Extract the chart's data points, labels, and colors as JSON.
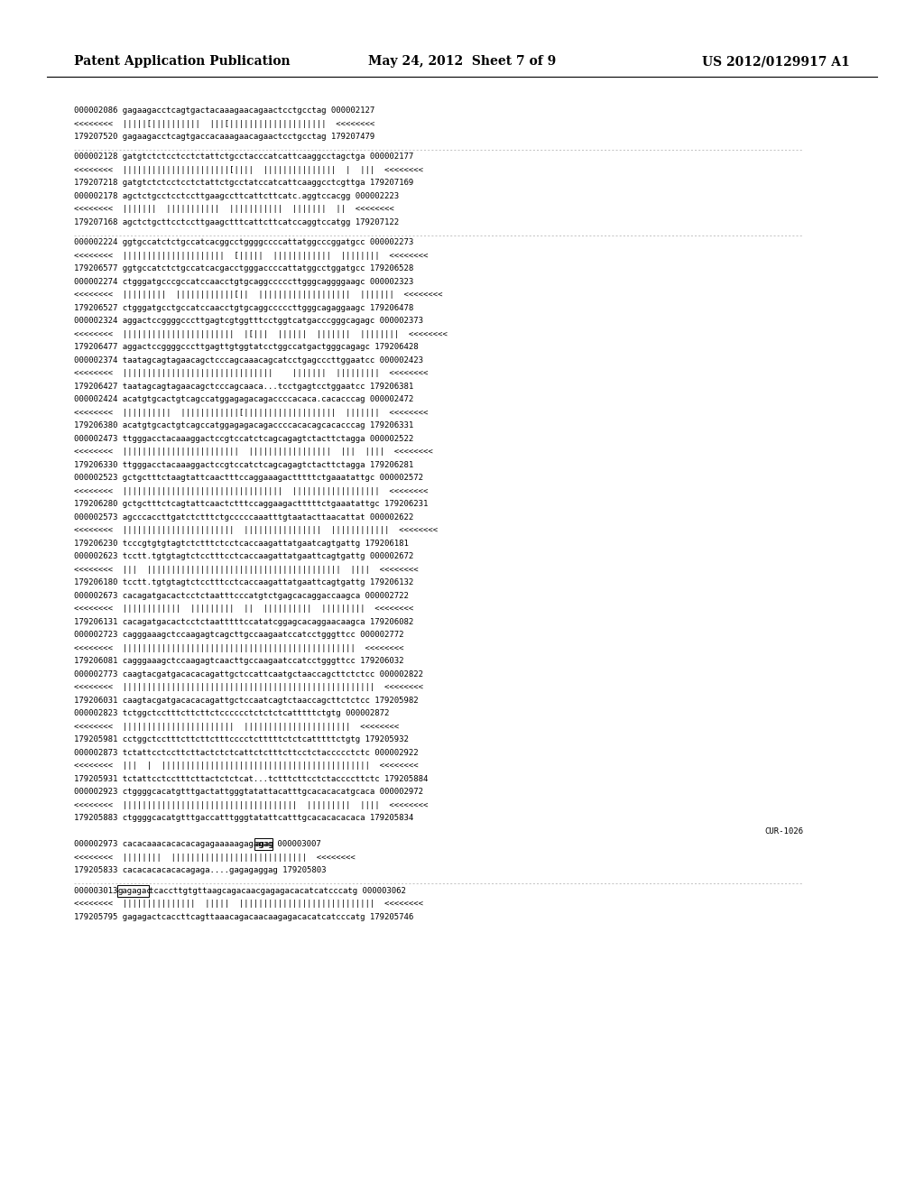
{
  "header_left": "Patent Application Publication",
  "header_center": "May 24, 2012  Sheet 7 of 9",
  "header_right": "US 2012/0129917 A1",
  "background_color": "#ffffff",
  "text_color": "#000000",
  "header_font_size": 10,
  "body_font_size": 6.5,
  "lines": [
    {
      "text": "000002086 gagaagacctcagtgactacaaagaacagaactcctgcctag 000002127",
      "type": "seq"
    },
    {
      "text": "<<<<<<<<  |||||[||||||||||  |||[||||||||||||||||||||  <<<<<<<<",
      "type": "align"
    },
    {
      "text": "179207520 gagaagacctcagtgaccacaaagaacagaactcctgcctag 179207479",
      "type": "seq"
    },
    {
      "text": "",
      "type": "separator"
    },
    {
      "text": "000002128 gatgtctctcctcctctattctgcctacccatcattcaaggcctagctga 000002177",
      "type": "seq"
    },
    {
      "text": "<<<<<<<<  ||||||||||||||||||||||[||||  |||||||||||||||  |  |||  <<<<<<<<",
      "type": "align"
    },
    {
      "text": "179207218 gatgtctctcctcctctattctgcctatccatcattcaaggcctcgttga 179207169",
      "type": "seq"
    },
    {
      "text": "000002178 agctctgcctcctccttgaagccttcattcttcatc.aggtccacgg 000002223",
      "type": "seq"
    },
    {
      "text": "<<<<<<<<  |||||||  |||||||||||  |||||||||||  |||||||  ||  <<<<<<<<",
      "type": "align"
    },
    {
      "text": "179207168 agctctgcttcctccttgaagctttcattcttcatccaggtccatgg 179207122",
      "type": "seq"
    },
    {
      "text": "",
      "type": "separator"
    },
    {
      "text": "000002224 ggtgccatctctgccatcacggcctggggccccattatggcccggatgcc 000002273",
      "type": "seq"
    },
    {
      "text": "<<<<<<<<  |||||||||||||||||||||  [|||||  ||||||||||||  ||||||||  <<<<<<<<",
      "type": "align"
    },
    {
      "text": "179206577 ggtgccatctctgccatcacgacctgggaccccattatggcctggatgcc 179206528",
      "type": "seq"
    },
    {
      "text": "000002274 ctgggatgcccgccatccaacctgtgcaggcccccttgggcaggggaagc 000002323",
      "type": "seq"
    },
    {
      "text": "<<<<<<<<  |||||||||  ||||||||||||[||  |||||||||||||||||||  |||||||  <<<<<<<<",
      "type": "align"
    },
    {
      "text": "179206527 ctgggatgcctgccatccaacctgtgcaggcccccttgggcagaggaagc 179206478",
      "type": "seq"
    },
    {
      "text": "000002324 aggactccggggcccttgagtcgtggtttcctggtcatgacccgggcagagc 000002373",
      "type": "seq"
    },
    {
      "text": "<<<<<<<<  |||||||||||||||||||||||  |[|||  ||||||  |||||||  ||||||||  <<<<<<<<",
      "type": "align"
    },
    {
      "text": "179206477 aggactccggggcccttgagttgtggtatcctggccatgactgggcagagc 179206428",
      "type": "seq"
    },
    {
      "text": "000002374 taatagcagtagaacagctcccagcaaacagcatcctgagcccttggaatcc 000002423",
      "type": "seq"
    },
    {
      "text": "<<<<<<<<  |||||||||||||||||||||||||||||||    |||||||  |||||||||  <<<<<<<<",
      "type": "align"
    },
    {
      "text": "179206427 taatagcagtagaacagctcccagcaaca...tcctgagtcctggaatcc 179206381",
      "type": "seq"
    },
    {
      "text": "000002424 acatgtgcactgtcagccatggagagacagaccccacaca.cacacccag 000002472",
      "type": "seq"
    },
    {
      "text": "<<<<<<<<  ||||||||||  ||||||||||||[|||||||||||||||||||  |||||||  <<<<<<<<",
      "type": "align"
    },
    {
      "text": "179206380 acatgtgcactgtcagccatggagagacagaccccacacagcacacccag 179206331",
      "type": "seq"
    },
    {
      "text": "000002473 ttgggacctacaaaggactccgtccatctcagcagagtctacttctagga 000002522",
      "type": "seq"
    },
    {
      "text": "<<<<<<<<  ||||||||||||||||||||||||  |||||||||||||||||  |||  ||||  <<<<<<<<",
      "type": "align"
    },
    {
      "text": "179206330 ttgggacctacaaaggactccgtccatctcagcagagtctacttctagga 179206281",
      "type": "seq"
    },
    {
      "text": "000002523 gctgctttctaagtattcaactttccaggaaagactttttctgaaatattgc 000002572",
      "type": "seq"
    },
    {
      "text": "<<<<<<<<  |||||||||||||||||||||||||||||||||  ||||||||||||||||||  <<<<<<<<",
      "type": "align"
    },
    {
      "text": "179206280 gctgctttctcagtattcaactctttccaggaagactttttctgaaatattgc 179206231",
      "type": "seq"
    },
    {
      "text": "000002573 agcccaccttgatctctttctgcccccaaatttgtaatacttaacattat 000002622",
      "type": "seq"
    },
    {
      "text": "<<<<<<<<  |||||||||||||||||||||||  ||||||||||||||||  ||||||||||||  <<<<<<<<",
      "type": "align"
    },
    {
      "text": "179206230 tcccgtgtgtagtctctttctcctcaccaagattatgaatcagtgattg 179206181",
      "type": "seq"
    },
    {
      "text": "000002623 tcctt.tgtgtagtctcctttcctcaccaagattatgaattcagtgattg 000002672",
      "type": "seq"
    },
    {
      "text": "<<<<<<<<  |||  ||||||||||||||||||||||||||||||||||||||||  ||||  <<<<<<<<",
      "type": "align"
    },
    {
      "text": "179206180 tcctt.tgtgtagtctcctttcctcaccaagattatgaattcagtgattg 179206132",
      "type": "seq"
    },
    {
      "text": "000002673 cacagatgacactcctctaatttcccatgtctgagcacaggaccaagca 000002722",
      "type": "seq"
    },
    {
      "text": "<<<<<<<<  ||||||||||||  |||||||||  ||  ||||||||||  |||||||||  <<<<<<<<",
      "type": "align"
    },
    {
      "text": "179206131 cacagatgacactcctctaatttttccatatcggagcacaggaacaagca 179206082",
      "type": "seq"
    },
    {
      "text": "000002723 cagggaaagctccaagagtcagcttgccaagaatccatcctgggttcc 000002772",
      "type": "seq"
    },
    {
      "text": "<<<<<<<<  ||||||||||||||||||||||||||||||||||||||||||||||||  <<<<<<<<",
      "type": "align"
    },
    {
      "text": "179206081 cagggaaagctccaagagtcaacttgccaagaatccatcctgggttcc 179206032",
      "type": "seq"
    },
    {
      "text": "000002773 caagtacgatgacacacagattgctccattcaatgctaaccagcttctctcc 000002822",
      "type": "seq"
    },
    {
      "text": "<<<<<<<<  ||||||||||||||||||||||||||||||||||||||||||||||||||||  <<<<<<<<",
      "type": "align"
    },
    {
      "text": "179206031 caagtacgatgacacacagattgctccaatcagtctaaccagcttctctcc 179205982",
      "type": "seq"
    },
    {
      "text": "000002823 tctggctcctttcttcttctcccccctctctctcatttttctgtg 000002872",
      "type": "seq"
    },
    {
      "text": "<<<<<<<<  |||||||||||||||||||||||  ||||||||||||||||||||||  <<<<<<<<",
      "type": "align"
    },
    {
      "text": "179205981 cctggctcctttcttcttctttcccctctttttctctcatttttctgtg 179205932",
      "type": "seq"
    },
    {
      "text": "000002873 tctattcctccttcttactctctcattctctttcttcctctaccccctctc 000002922",
      "type": "seq"
    },
    {
      "text": "<<<<<<<<  |||  |  |||||||||||||||||||||||||||||||||||||||||||  <<<<<<<<",
      "type": "align"
    },
    {
      "text": "179205931 tctattcctcctttcttactctctcat...tctttcttcctctaccccttctc 179205884",
      "type": "seq"
    },
    {
      "text": "000002923 ctggggcacatgtttgactattgggtatattacatttgcacacacatgcaca 000002972",
      "type": "seq"
    },
    {
      "text": "<<<<<<<<  ||||||||||||||||||||||||||||||||||||  |||||||||  ||||  <<<<<<<<",
      "type": "align"
    },
    {
      "text": "179205883 ctggggcacatgtttgaccatttgggtatattcatttgcacacacacaca 179205834",
      "type": "seq"
    },
    {
      "text": "CUR-1026",
      "type": "label"
    },
    {
      "text": "000002973 cacacaaacacacacagagaaaaagagagagagag 000003007",
      "type": "seq_highlight",
      "before": "000002973 cacacaaacacacacagagaaaaagagagag",
      "highlighted": "agag",
      "after": " 000003007"
    },
    {
      "text": "<<<<<<<<  ||||||||  ||||||||||||||||||||||||||||  <<<<<<<<",
      "type": "align"
    },
    {
      "text": "179205833 cacacacacacacagaga....gagagaggag 179205803",
      "type": "seq"
    },
    {
      "text": "",
      "type": "separator"
    },
    {
      "text": "000003013 gagagactcaccttgtgttaagcagacaacgagagacacatcatcccatg 000003062",
      "type": "seq_highlight2",
      "before": "000003013 ",
      "highlighted": "gagagac",
      "after": "tcaccttgtgttaagcagacaacgagagacacatcatcccatg 000003062"
    },
    {
      "text": "<<<<<<<<  |||||||||||||||  |||||  ||||||||||||||||||||||||||||  <<<<<<<<",
      "type": "align"
    },
    {
      "text": "179205795 gagagactcaccttcagttaaacagacaacaagagacacatcatcccatg 179205746",
      "type": "seq"
    }
  ]
}
